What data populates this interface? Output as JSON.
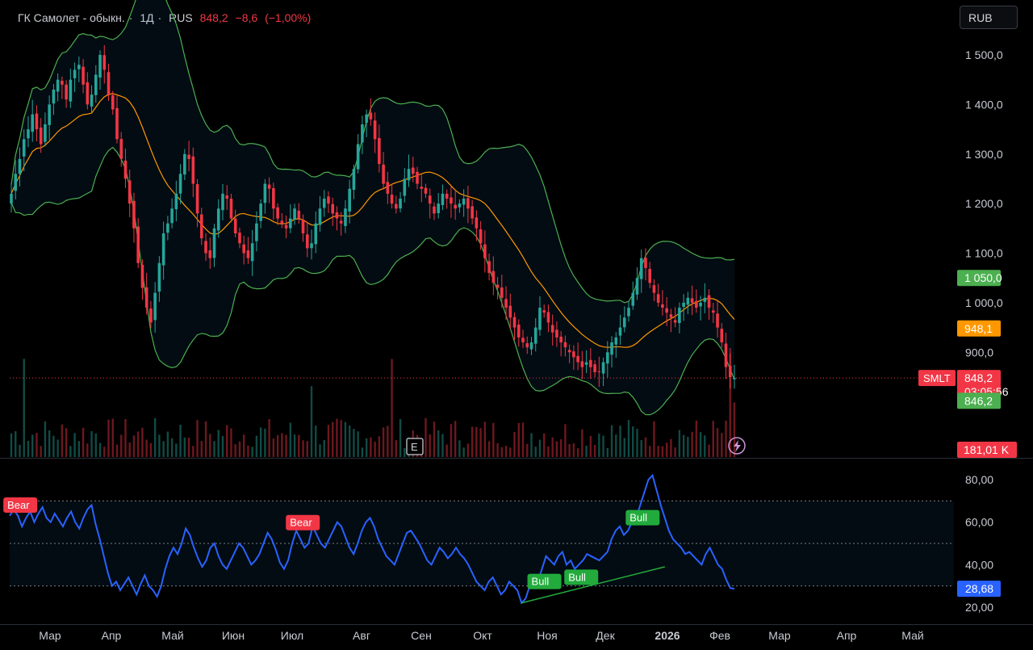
{
  "header": {
    "title": "ГК Самолет - обыкн.",
    "interval": "1Д",
    "exchange": "RUS",
    "price": "848,2",
    "change": "−8,6",
    "change_pct": "(−1,00%)",
    "currency_button": "RUB"
  },
  "colors": {
    "up": "#26a69a",
    "down": "#f23645",
    "ma": "#ff9800",
    "bands": "#4caf50",
    "rsi": "#2962ff",
    "bull": "#22ab3c",
    "bear": "#f23645"
  },
  "chart_data": [
    {
      "type": "candlestick",
      "title": "",
      "y_ticks": [
        "1 500,0",
        "1 400,0",
        "1 300,0",
        "1 200,0",
        "1 100,0",
        "1 000,0",
        "900,0"
      ],
      "ylim": [
        830,
        1560
      ],
      "x_labels": [
        "Мар",
        "Апр",
        "Май",
        "Июн",
        "Июл",
        "Авг",
        "Сен",
        "Окт",
        "Ноя",
        "Дек",
        "2026",
        "Фев",
        "Мар",
        "Апр",
        "Май"
      ],
      "overlays": [
        "Bollinger Bands (upper / lower)",
        "Moving average (basis)"
      ],
      "close_series": [
        1220,
        1260,
        1290,
        1330,
        1350,
        1380,
        1350,
        1320,
        1360,
        1400,
        1430,
        1450,
        1440,
        1410,
        1450,
        1470,
        1480,
        1440,
        1400,
        1420,
        1460,
        1500,
        1470,
        1420,
        1390,
        1330,
        1290,
        1250,
        1200,
        1150,
        1080,
        1030,
        990,
        960,
        1020,
        1080,
        1140,
        1160,
        1190,
        1220,
        1260,
        1300,
        1290,
        1240,
        1180,
        1130,
        1100,
        1090,
        1150,
        1190,
        1220,
        1210,
        1170,
        1140,
        1120,
        1100,
        1090,
        1120,
        1160,
        1200,
        1240,
        1230,
        1190,
        1170,
        1160,
        1150,
        1170,
        1190,
        1170,
        1140,
        1110,
        1120,
        1160,
        1190,
        1210,
        1200,
        1180,
        1170,
        1160,
        1190,
        1230,
        1270,
        1320,
        1360,
        1380,
        1370,
        1330,
        1280,
        1240,
        1220,
        1200,
        1190,
        1210,
        1250,
        1270,
        1260,
        1240,
        1230,
        1220,
        1200,
        1180,
        1200,
        1220,
        1210,
        1200,
        1190,
        1200,
        1210,
        1190,
        1170,
        1150,
        1120,
        1090,
        1060,
        1040,
        1030,
        1010,
        990,
        970,
        950,
        930,
        920,
        910,
        920,
        950,
        990,
        980,
        960,
        940,
        930,
        920,
        910,
        900,
        890,
        880,
        870,
        880,
        870,
        860,
        860,
        880,
        900,
        920,
        930,
        950,
        970,
        990,
        1020,
        1050,
        1090,
        1070,
        1040,
        1020,
        1000,
        990,
        980,
        970,
        960,
        990,
        1000,
        1010,
        1000,
        990,
        1000,
        1010,
        990,
        980,
        950,
        920,
        870,
        850,
        848
      ],
      "price_labels": [
        {
          "text": "1 050,0",
          "value": 1050,
          "bg": "#4caf50"
        },
        {
          "text": "948,1",
          "value": 948.1,
          "bg": "#ff9800"
        },
        {
          "text": "848,2",
          "value": 848.2,
          "bg": "#f23645"
        },
        {
          "text": "03:05:56",
          "bg": "#f23645"
        },
        {
          "text": "846,2",
          "value": 846.2,
          "bg": "#4caf50"
        }
      ],
      "symbol_label": "SMLT",
      "current_price": 848.2,
      "volume_label": "181,01 K",
      "event_marker": "E",
      "volume_spikes": [
        {
          "index": 3,
          "level": 0.9
        },
        {
          "index": 71,
          "level": 0.65
        },
        {
          "index": 90,
          "level": 0.9
        },
        {
          "index": 170,
          "level": 1.0
        },
        {
          "index": 171,
          "level": 0.5
        }
      ],
      "grid": true
    },
    {
      "type": "line",
      "series": [
        {
          "name": "",
          "values": [
            63,
            66,
            63,
            58,
            62,
            65,
            60,
            64,
            67,
            62,
            60,
            64,
            61,
            58,
            62,
            65,
            60,
            57,
            62,
            66,
            68,
            59,
            52,
            44,
            36,
            30,
            32,
            28,
            31,
            34,
            30,
            26,
            31,
            35,
            30,
            28,
            25,
            30,
            38,
            44,
            48,
            45,
            50,
            57,
            54,
            48,
            43,
            39,
            42,
            48,
            50,
            44,
            40,
            38,
            42,
            46,
            50,
            48,
            44,
            40,
            42,
            45,
            50,
            55,
            52,
            47,
            41,
            38,
            42,
            50,
            56,
            52,
            48,
            50,
            58,
            54,
            50,
            48,
            52,
            56,
            60,
            58,
            53,
            48,
            45,
            50,
            56,
            60,
            62,
            58,
            52,
            48,
            44,
            42,
            40,
            45,
            50,
            55,
            56,
            53,
            50,
            46,
            42,
            40,
            44,
            48,
            46,
            43,
            45,
            48,
            45,
            43,
            40,
            36,
            32,
            30,
            28,
            32,
            34,
            30,
            26,
            28,
            32,
            30,
            28,
            22,
            24,
            30,
            35,
            32,
            38,
            44,
            42,
            40,
            44,
            46,
            40,
            42,
            38,
            40,
            42,
            45,
            44,
            43,
            42,
            44,
            46,
            52,
            56,
            58,
            54,
            56,
            60,
            62,
            68,
            74,
            80,
            82,
            75,
            68,
            62,
            56,
            52,
            50,
            48,
            45,
            46,
            44,
            42,
            40,
            45,
            48,
            44,
            40,
            38,
            33,
            29,
            28.68
          ]
        }
      ],
      "ylim": [
        15,
        88
      ],
      "y_ticks": [
        "80,00",
        "60,00",
        "40,00",
        "20,00"
      ],
      "level_lines": [
        70,
        50,
        30
      ],
      "current_label": "28,68",
      "divergence_labels": [
        {
          "text": "Bear",
          "kind": "bear",
          "index": 2
        },
        {
          "text": "Bear",
          "kind": "bear",
          "index": 71
        },
        {
          "text": "Bull",
          "kind": "bull",
          "index": 130
        },
        {
          "text": "Bull",
          "kind": "bull",
          "index": 139
        },
        {
          "text": "Bull",
          "kind": "bull",
          "index": 154
        }
      ]
    }
  ]
}
